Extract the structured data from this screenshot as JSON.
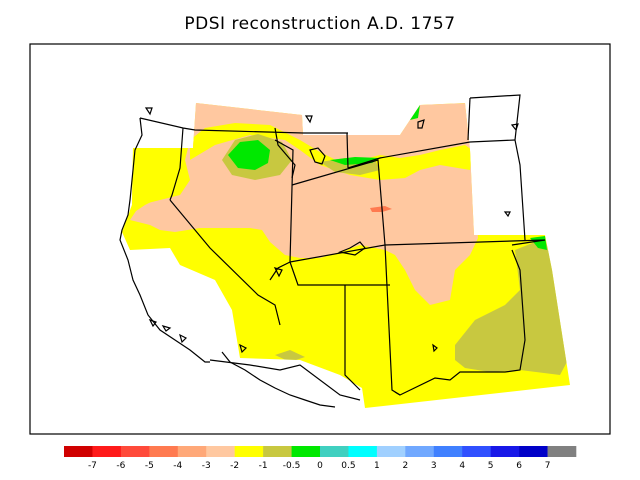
{
  "title": "PDSI reconstruction A.D. 1757",
  "legend": {
    "colors": [
      "#d00000",
      "#ff1a1a",
      "#ff4a3a",
      "#ff7a50",
      "#ffa878",
      "#ffc8a0",
      "#ffff00",
      "#c8c840",
      "#00e800",
      "#40d0c0",
      "#00ffff",
      "#a0d0ff",
      "#70a8ff",
      "#4080ff",
      "#3050ff",
      "#1818e8",
      "#0000c8",
      "#808080"
    ],
    "labels": [
      "-7",
      "-6",
      "-5",
      "-4",
      "-3",
      "-2",
      "-1",
      "-0.5",
      "0",
      "0.5",
      "1",
      "2",
      "3",
      "4",
      "5",
      "6",
      "7"
    ]
  },
  "colors": {
    "dry_moderate": "#ffc8a0",
    "near_normal_dry": "#ffff00",
    "slightly_dry": "#c8c840",
    "near_normal_wet": "#00e800",
    "severe_dry": "#ff7a50",
    "boundary": "#000000"
  }
}
